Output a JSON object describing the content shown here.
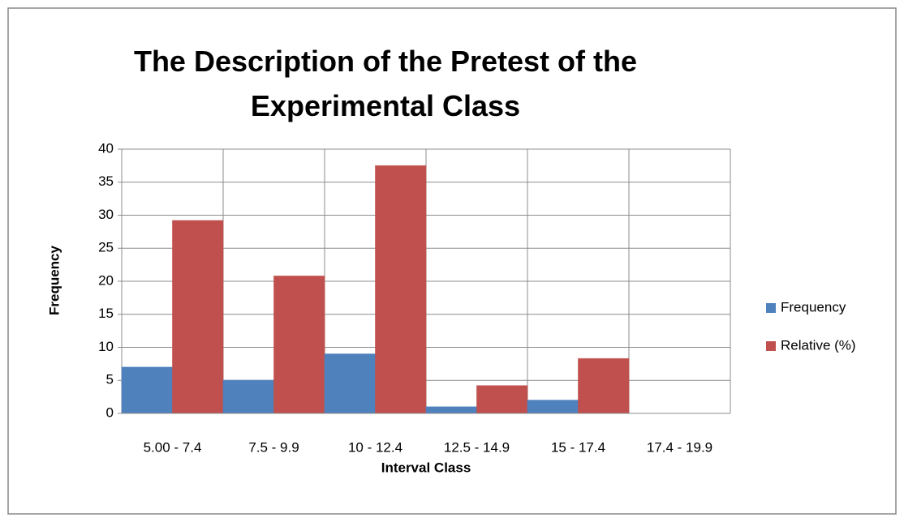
{
  "chart_data": {
    "type": "bar",
    "title": "The Description of the Pretest of the Experimental Class",
    "x_label": "Interval Class",
    "y_label": "Frequency",
    "categories": [
      "5.00 - 7.4",
      "7.5 - 9.9",
      "10 - 12.4",
      "12.5 - 14.9",
      "15 - 17.4",
      "17.4 - 19.9"
    ],
    "series": [
      {
        "name": "Frequency",
        "color": "#4f81bd",
        "values": [
          7,
          5,
          9,
          1,
          2,
          0
        ]
      },
      {
        "name": "Relative (%)",
        "color": "#c0504d",
        "values": [
          29.2,
          20.8,
          37.5,
          4.2,
          8.3,
          0
        ]
      }
    ],
    "ylim": [
      0,
      40
    ],
    "yticks": [
      0,
      5,
      10,
      15,
      20,
      25,
      30,
      35,
      40
    ],
    "grid": true,
    "legend": "right"
  }
}
